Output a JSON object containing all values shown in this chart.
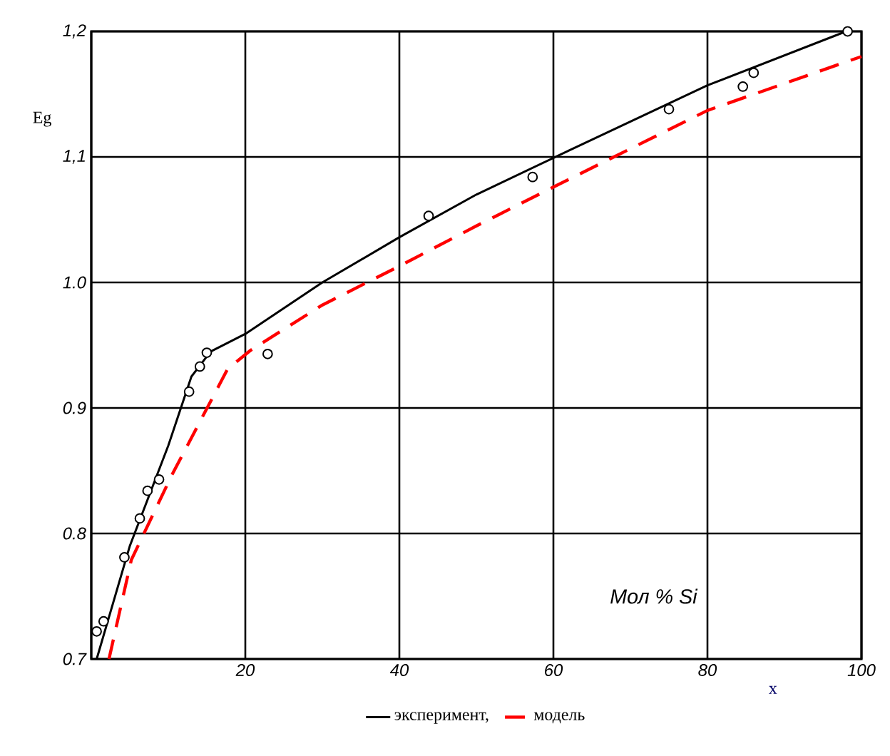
{
  "chart_data": {
    "type": "line",
    "xlabel": "x",
    "ylabel": "Eg",
    "annotations": [
      "Мол % Si"
    ],
    "xlim": [
      0,
      100
    ],
    "ylim": [
      0.7,
      1.2
    ],
    "xticks": [
      {
        "value": 0,
        "label": null
      },
      20,
      40,
      60,
      80,
      100
    ],
    "yticks": [
      {
        "value": 0.7,
        "label": "0.7"
      },
      {
        "value": 0.8,
        "label": "0.8"
      },
      {
        "value": 0.9,
        "label": "0.9"
      },
      {
        "value": 1.0,
        "label": "1.0"
      },
      {
        "value": 1.1,
        "label": "1,1"
      },
      {
        "value": 1.2,
        "label": "1,2"
      }
    ],
    "grid": true,
    "legend": "bottom",
    "series": [
      {
        "name": "эксперимент,",
        "color": "#000000",
        "line_style": "solid",
        "marker": "none",
        "x": [
          0.7,
          5,
          10,
          13,
          15.5,
          20,
          30,
          40,
          50,
          62,
          80,
          98
        ],
        "values": [
          0.7,
          0.79,
          0.87,
          0.925,
          0.945,
          0.959,
          1.0,
          1.036,
          1.07,
          1.105,
          1.157,
          1.2
        ]
      },
      {
        "type": "scatter",
        "color": "#000000",
        "marker": "circle",
        "x": [
          0.7,
          1.6,
          4.3,
          6.3,
          7.3,
          8.8,
          12.7,
          14.1,
          15,
          22.9,
          43.8,
          57.3,
          75,
          84.6,
          86,
          98.2
        ],
        "values": [
          0.722,
          0.73,
          0.781,
          0.812,
          0.834,
          0.843,
          0.913,
          0.933,
          0.944,
          0.943,
          1.053,
          1.084,
          1.138,
          1.156,
          1.167,
          1.2
        ]
      },
      {
        "name": "модель",
        "type": "line",
        "color": "#ff0000",
        "line_style": "dashed",
        "marker": "none",
        "x": [
          2.3,
          5.2,
          10.5,
          17.7,
          20.7,
          30,
          40,
          50,
          60,
          80,
          100
        ],
        "values": [
          0.7,
          0.779,
          0.847,
          0.931,
          0.946,
          0.982,
          1.013,
          1.045,
          1.076,
          1.137,
          1.18
        ]
      }
    ]
  }
}
